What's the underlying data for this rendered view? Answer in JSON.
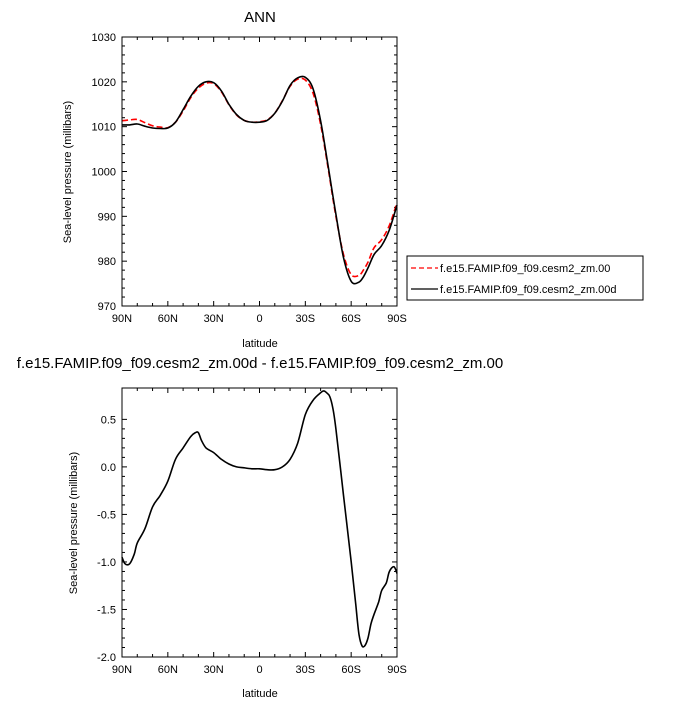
{
  "chart_data": [
    {
      "type": "line",
      "title": "ANN",
      "xlabel": "latitude",
      "ylabel": "Sea-level pressure (millibars)",
      "xticks": [
        {
          "value": -90,
          "label": "90N"
        },
        {
          "value": -60,
          "label": "60N"
        },
        {
          "value": -30,
          "label": "30N"
        },
        {
          "value": 0,
          "label": "0"
        },
        {
          "value": 30,
          "label": "30S"
        },
        {
          "value": 60,
          "label": "60S"
        },
        {
          "value": 90,
          "label": "90S"
        }
      ],
      "xlim": [
        -90,
        90
      ],
      "ylim": [
        970,
        1030
      ],
      "yticks": [
        970,
        980,
        990,
        1000,
        1010,
        1020,
        1030
      ],
      "grid": false,
      "legend_position": "right",
      "series": [
        {
          "name": "f.e15.FAMIP.f09_f09.cesm2_zm.00",
          "color": "#ff0000",
          "dash": "dashed",
          "x": [
            -90,
            -85,
            -80,
            -75,
            -70,
            -65,
            -60,
            -55,
            -50,
            -45,
            -40,
            -35,
            -30,
            -25,
            -20,
            -15,
            -10,
            -5,
            0,
            5,
            10,
            15,
            20,
            25,
            30,
            35,
            40,
            45,
            50,
            55,
            60,
            65,
            68,
            71,
            75,
            80,
            85,
            90
          ],
          "values": [
            1011.3,
            1011.5,
            1011.6,
            1010.9,
            1010.2,
            1009.9,
            1009.8,
            1011.0,
            1013.5,
            1016.5,
            1018.6,
            1019.7,
            1019.6,
            1017.8,
            1014.9,
            1012.6,
            1011.4,
            1011.0,
            1011.1,
            1011.5,
            1013.0,
            1015.8,
            1019.0,
            1020.6,
            1020.4,
            1017.5,
            1010.5,
            1000.5,
            990.0,
            981.5,
            977.0,
            976.8,
            978.0,
            979.8,
            983.0,
            984.8,
            988.0,
            993.0
          ]
        },
        {
          "name": "f.e15.FAMIP.f09_f09.cesm2_zm.00d",
          "color": "#000000",
          "dash": "solid",
          "x": [
            -90,
            -85,
            -80,
            -75,
            -70,
            -65,
            -60,
            -55,
            -50,
            -45,
            -40,
            -35,
            -30,
            -25,
            -20,
            -15,
            -10,
            -5,
            0,
            5,
            10,
            15,
            20,
            25,
            30,
            35,
            40,
            45,
            50,
            55,
            60,
            65,
            68,
            71,
            75,
            80,
            85,
            90
          ],
          "values": [
            1010.4,
            1010.4,
            1010.6,
            1010.1,
            1009.7,
            1009.6,
            1009.7,
            1011.0,
            1013.8,
            1016.8,
            1019.0,
            1020.0,
            1019.8,
            1018.0,
            1015.0,
            1012.7,
            1011.4,
            1011.0,
            1011.0,
            1011.4,
            1013.0,
            1015.7,
            1019.2,
            1020.9,
            1021.0,
            1018.5,
            1011.3,
            1001.0,
            990.5,
            980.8,
            975.5,
            975.3,
            976.5,
            978.5,
            981.5,
            983.5,
            987.0,
            992.5
          ]
        }
      ]
    },
    {
      "type": "line",
      "title": "f.e15.FAMIP.f09_f09.cesm2_zm.00d - f.e15.FAMIP.f09_f09.cesm2_zm.00",
      "xlabel": "latitude",
      "ylabel": "Sea-level pressure (millibars)",
      "xticks": [
        {
          "value": -90,
          "label": "90N"
        },
        {
          "value": -60,
          "label": "60N"
        },
        {
          "value": -30,
          "label": "30N"
        },
        {
          "value": 0,
          "label": "0"
        },
        {
          "value": 30,
          "label": "30S"
        },
        {
          "value": 60,
          "label": "60S"
        },
        {
          "value": 90,
          "label": "90S"
        }
      ],
      "xlim": [
        -90,
        90
      ],
      "ylim": [
        -2.0,
        0.83
      ],
      "yticks": [
        {
          "value": -2.0,
          "label": "-2.0"
        },
        {
          "value": -1.5,
          "label": "-1.5"
        },
        {
          "value": -1.0,
          "label": "-1.0"
        },
        {
          "value": -0.5,
          "label": "-0.5"
        },
        {
          "value": 0.0,
          "label": "0.0"
        },
        {
          "value": 0.5,
          "label": "0.5"
        }
      ],
      "grid": false,
      "series": [
        {
          "color": "#000000",
          "dash": "solid",
          "x": [
            -90,
            -88,
            -85,
            -82,
            -80,
            -75,
            -70,
            -65,
            -60,
            -55,
            -50,
            -45,
            -42,
            -40,
            -38,
            -35,
            -30,
            -25,
            -20,
            -15,
            -10,
            -5,
            0,
            5,
            10,
            15,
            20,
            25,
            30,
            35,
            40,
            42,
            44,
            46,
            48,
            50,
            55,
            60,
            63,
            65,
            67,
            69,
            71,
            73,
            75,
            78,
            80,
            83,
            85,
            88,
            90
          ],
          "values": [
            -0.95,
            -1.02,
            -1.02,
            -0.92,
            -0.8,
            -0.65,
            -0.42,
            -0.3,
            -0.15,
            0.08,
            0.2,
            0.32,
            0.36,
            0.36,
            0.28,
            0.2,
            0.15,
            0.08,
            0.03,
            0.0,
            -0.01,
            -0.02,
            -0.02,
            -0.03,
            -0.03,
            0.0,
            0.08,
            0.25,
            0.55,
            0.7,
            0.78,
            0.8,
            0.78,
            0.74,
            0.62,
            0.4,
            -0.3,
            -1.0,
            -1.45,
            -1.75,
            -1.88,
            -1.88,
            -1.8,
            -1.65,
            -1.55,
            -1.42,
            -1.3,
            -1.22,
            -1.1,
            -1.05,
            -1.12
          ]
        }
      ]
    }
  ]
}
